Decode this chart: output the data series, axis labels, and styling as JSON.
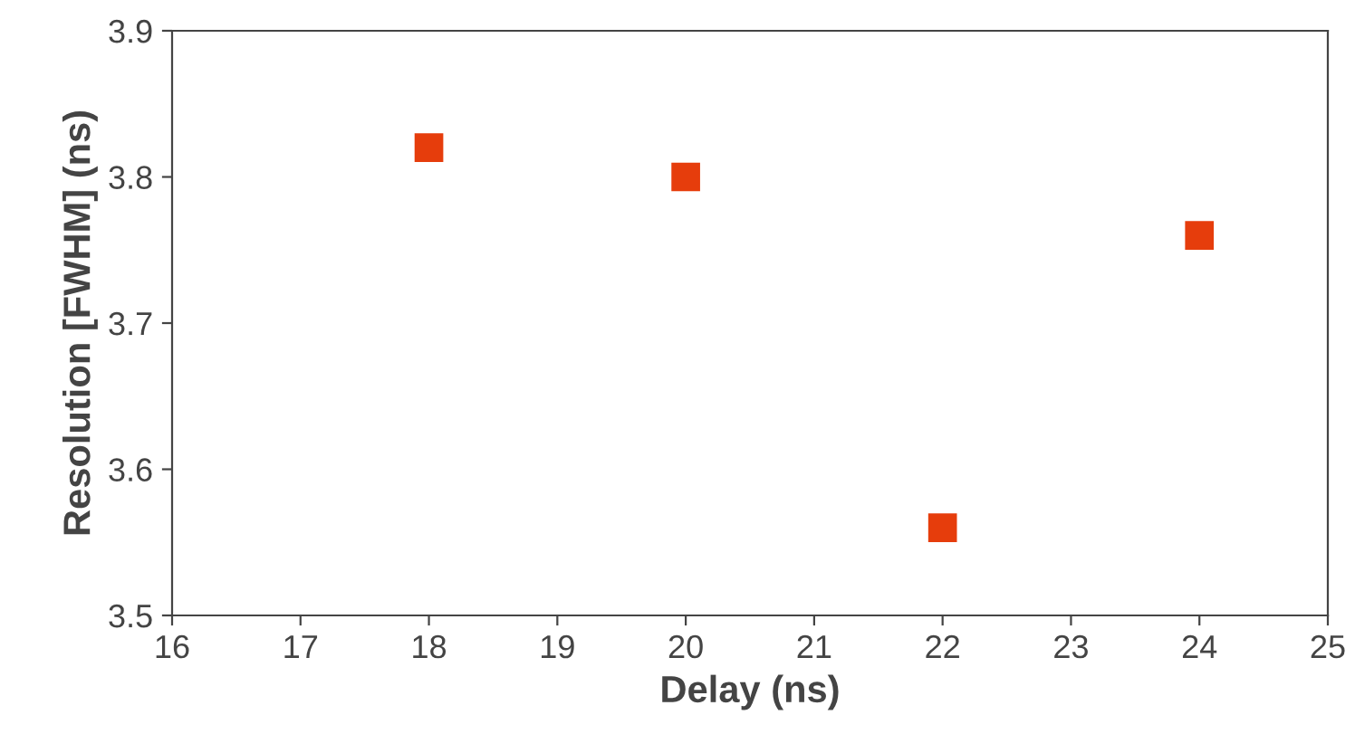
{
  "chart_data": {
    "type": "scatter",
    "xlabel": "Delay (ns)",
    "ylabel": "Resolution [FWHM] (ns)",
    "x": [
      18,
      20,
      22,
      24
    ],
    "series": [
      {
        "color": "#e63d0c",
        "values": [
          3.82,
          3.8,
          3.56,
          3.76
        ]
      }
    ],
    "xlim": [
      16,
      25
    ],
    "xticks": [
      16,
      17,
      18,
      19,
      20,
      21,
      22,
      23,
      24,
      25
    ],
    "ylim": [
      3.5,
      3.9
    ],
    "yticks": [
      {
        "value": 3.5,
        "label": "3.5"
      },
      {
        "value": 3.6,
        "label": "3.6"
      },
      {
        "value": 3.7,
        "label": "3.7"
      },
      {
        "value": 3.8,
        "label": "3.8"
      },
      {
        "value": 3.9,
        "label": "3.9"
      }
    ],
    "marker": "square",
    "grid": false,
    "legend": false
  }
}
